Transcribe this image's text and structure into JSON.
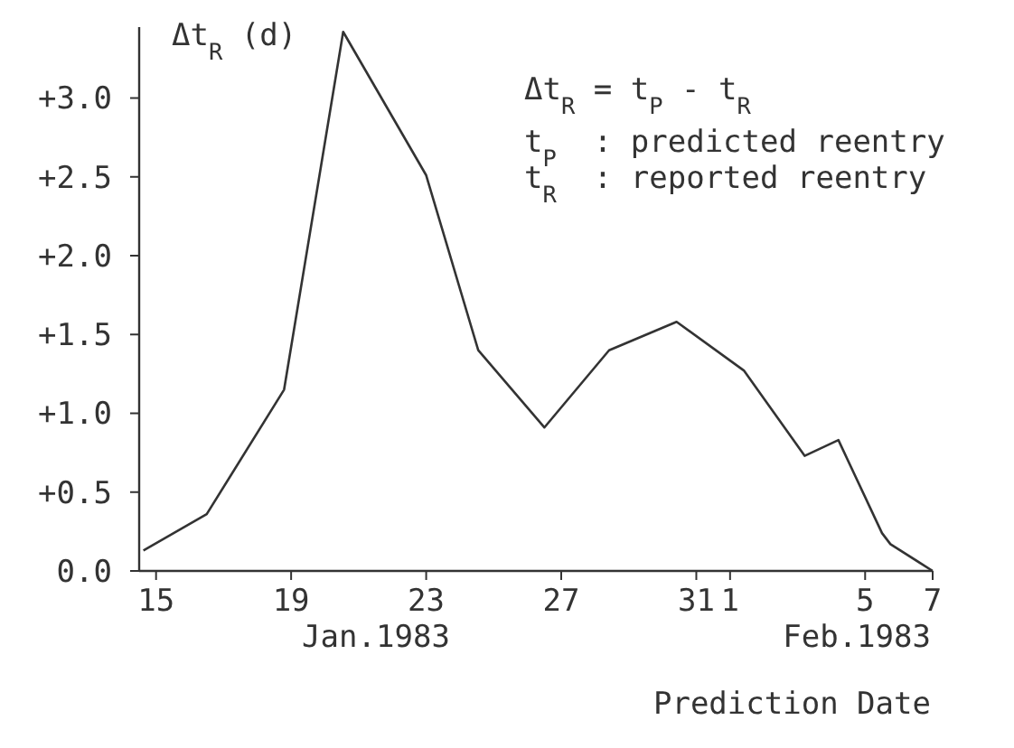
{
  "chart_data": {
    "type": "line",
    "ylabel": "Δt$_{R}$ (d)",
    "xlabel": "Prediction Date",
    "annotations": [
      "Δt$_{R}$ = t$_{P}$ - t$_{R}$",
      "t$_{P}$  : predicted reentry",
      "t$_{R}$  : reported reentry",
      "Jan.1983",
      "Feb.1983"
    ],
    "x": [
      "1983-01-14T15:00",
      "1983-01-16T12:00",
      "1983-01-18T19:00",
      "1983-01-20T13:00",
      "1983-01-23",
      "1983-01-24T13:00",
      "1983-01-26T12:00",
      "1983-01-28T10:00",
      "1983-01-30T10:00",
      "1983-02-01T10:00",
      "1983-02-03T05:00",
      "1983-02-04T05:00",
      "1983-02-05T12:00",
      "1983-02-05T18:00",
      "1983-02-07"
    ],
    "series": [
      {
        "color": "#333333",
        "values": [
          0.13,
          0.36,
          1.15,
          3.42,
          2.51,
          1.4,
          0.91,
          1.4,
          1.58,
          1.27,
          0.73,
          0.83,
          0.24,
          0.17,
          0
        ]
      }
    ],
    "xlim": [
      "1983-01-14T12:00",
      "1983-02-07"
    ],
    "xticks": [
      {
        "value": "1983-01-15",
        "label": "15"
      },
      {
        "value": "1983-01-19",
        "label": "19"
      },
      {
        "value": "1983-01-23",
        "label": "23"
      },
      {
        "value": "1983-01-27",
        "label": "27"
      },
      {
        "value": "1983-01-31",
        "label": "31"
      },
      {
        "value": "1983-02-01",
        "label": "1"
      },
      {
        "value": "1983-02-05",
        "label": "5"
      },
      {
        "value": "1983-02-07",
        "label": "7"
      }
    ],
    "ylim": [
      0,
      3.45
    ],
    "yticks": [
      {
        "value": 0,
        "label": "0.0"
      },
      {
        "value": 0.5,
        "label": "+0.5"
      },
      {
        "value": 1,
        "label": "+1.0"
      },
      {
        "value": 1.5,
        "label": "+1.5"
      },
      {
        "value": 2,
        "label": "+2.0"
      },
      {
        "value": 2.5,
        "label": "+2.5"
      },
      {
        "value": 3,
        "label": "+3.0"
      }
    ],
    "grid": false,
    "marker": "none",
    "line_style": "solid"
  }
}
